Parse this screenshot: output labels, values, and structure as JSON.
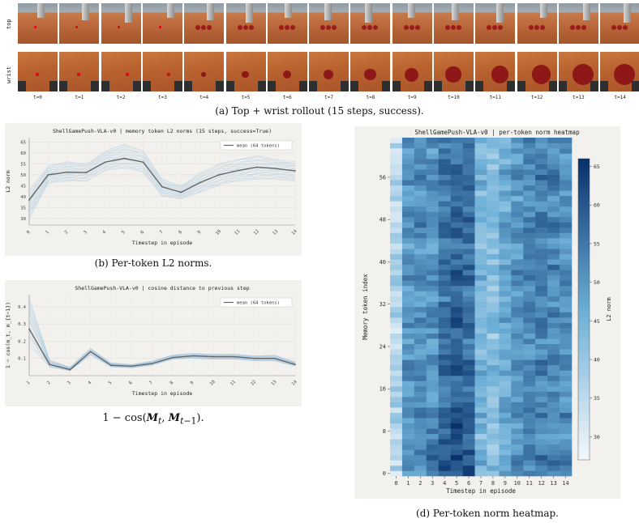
{
  "rollout": {
    "row_labels": [
      "top",
      "wrist"
    ],
    "timestep_labels": [
      "t=0",
      "t=1",
      "t=2",
      "t=3",
      "t=4",
      "t=5",
      "t=6",
      "t=7",
      "t=8",
      "t=9",
      "t=10",
      "t=11",
      "t=12",
      "t=13",
      "t=14"
    ],
    "caption": "(a) Top + wrist rollout (15 steps, success)."
  },
  "captions": {
    "b": "(b) Per-token L2 norms.",
    "c": "(c) 1 − cos(M_t, M_{t−1}).",
    "d": "(d) Per-token norm heatmap."
  },
  "colors": {
    "panel_bg": "#f3f1ed",
    "mean_line": "#666666",
    "token_line": "#9ec3df",
    "heat_low": "#f4f8fc",
    "heat_high": "#08306b"
  },
  "chart_data": [
    {
      "id": "b",
      "type": "line",
      "title": "ShellGamePush-VLA-v0 | memory token L2 norms (15 steps, success=True)",
      "xlabel": "Timestep in episode",
      "ylabel": "L2 norm",
      "x": [
        0,
        1,
        2,
        3,
        4,
        5,
        6,
        7,
        8,
        9,
        10,
        11,
        12,
        13,
        14
      ],
      "xticks": [
        "0",
        "1",
        "2",
        "3",
        "4",
        "5",
        "6",
        "7",
        "8",
        "9",
        "10",
        "11",
        "12",
        "13",
        "14"
      ],
      "ylim": [
        27,
        67
      ],
      "yticks": [
        30,
        35,
        40,
        45,
        50,
        55,
        60,
        65
      ],
      "legend": {
        "label": "mean (64 tokens)",
        "position": "top-right"
      },
      "series": [
        {
          "name": "mean (64 tokens)",
          "values": [
            38.5,
            50.0,
            51.2,
            51.0,
            55.8,
            57.5,
            55.8,
            44.5,
            42.0,
            46.5,
            50.0,
            52.0,
            53.5,
            52.8,
            51.8
          ]
        }
      ],
      "token_band": {
        "min": [
          30,
          46,
          47,
          47,
          52,
          53,
          51,
          40,
          39,
          42,
          45,
          47,
          48,
          48,
          47
        ],
        "max": [
          43,
          54,
          56,
          55,
          61,
          64,
          61,
          48,
          45,
          51,
          55,
          57,
          59,
          57,
          56
        ]
      }
    },
    {
      "id": "c",
      "type": "line",
      "title": "ShellGamePush-VLA-v0 | cosine distance to previous step",
      "xlabel": "Timestep in episode",
      "ylabel": "1 − cos(m_t, m_{t−1})",
      "x": [
        1,
        2,
        3,
        4,
        5,
        6,
        7,
        8,
        9,
        10,
        11,
        12,
        13,
        14
      ],
      "xticks": [
        "1",
        "2",
        "3",
        "4",
        "5",
        "6",
        "7",
        "8",
        "9",
        "10",
        "11",
        "12",
        "13",
        "14"
      ],
      "ylim": [
        0.0,
        0.47
      ],
      "yticks": [
        0.1,
        0.2,
        0.3,
        0.4
      ],
      "legend": {
        "label": "mean (64 tokens)",
        "position": "top-right"
      },
      "series": [
        {
          "name": "mean (64 tokens)",
          "values": [
            0.27,
            0.065,
            0.035,
            0.14,
            0.06,
            0.055,
            0.07,
            0.105,
            0.115,
            0.11,
            0.11,
            0.1,
            0.1,
            0.065
          ]
        }
      ],
      "token_band": {
        "min": [
          0.18,
          0.05,
          0.028,
          0.12,
          0.05,
          0.045,
          0.06,
          0.095,
          0.1,
          0.095,
          0.095,
          0.085,
          0.085,
          0.055
        ],
        "max": [
          0.45,
          0.09,
          0.05,
          0.16,
          0.075,
          0.065,
          0.085,
          0.12,
          0.13,
          0.125,
          0.125,
          0.115,
          0.12,
          0.08
        ]
      }
    },
    {
      "id": "d",
      "type": "heatmap",
      "title": "ShellGamePush-VLA-v0 | per-token norm heatmap",
      "xlabel": "Timestep in episode",
      "ylabel": "Memory token index",
      "xticks": [
        "0",
        "1",
        "2",
        "3",
        "4",
        "5",
        "6",
        "7",
        "8",
        "9",
        "10",
        "11",
        "12",
        "13",
        "14"
      ],
      "yticks": [
        0,
        8,
        16,
        24,
        32,
        40,
        48,
        56
      ],
      "rows": 64,
      "cols": 15,
      "colorbar": {
        "label": "L2 norm",
        "ticks": [
          30,
          35,
          40,
          45,
          50,
          55,
          60,
          65
        ],
        "range": [
          27,
          66
        ]
      },
      "column_means": [
        38.5,
        50.0,
        51.2,
        51.0,
        55.8,
        57.5,
        55.8,
        44.5,
        42.0,
        46.5,
        50.0,
        52.0,
        53.5,
        52.8,
        51.8
      ]
    }
  ]
}
